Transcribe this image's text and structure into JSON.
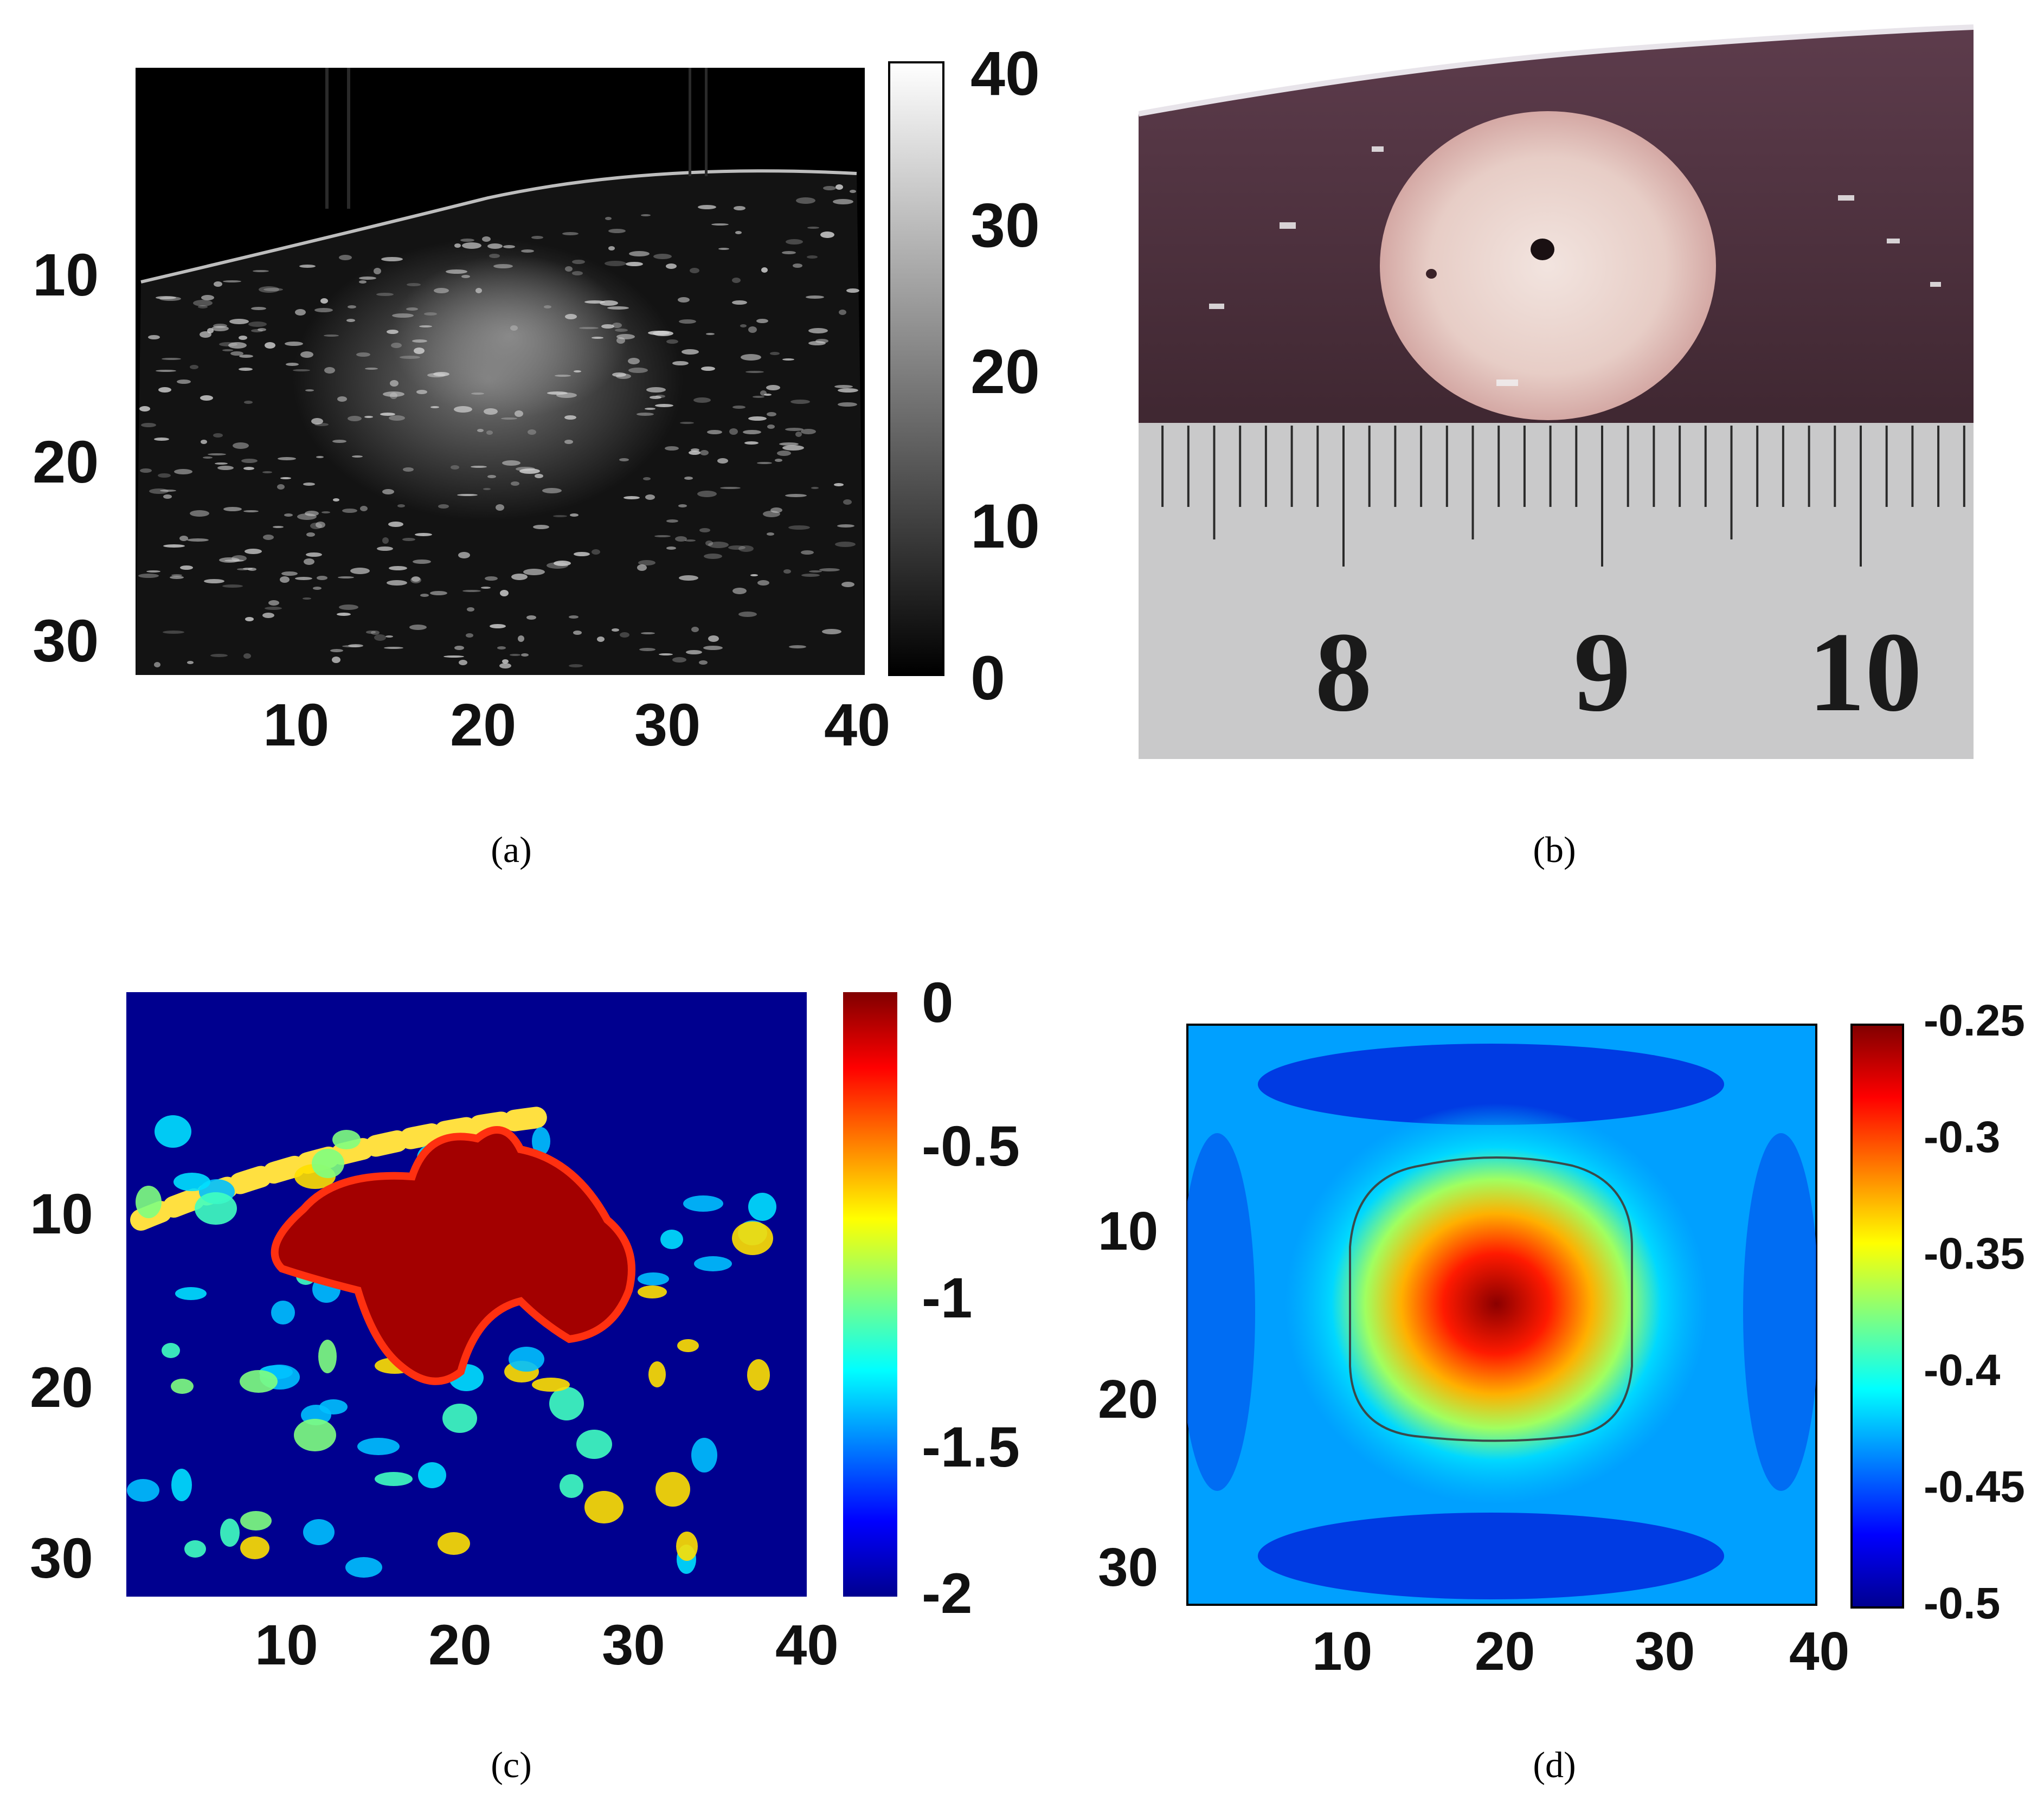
{
  "panels": {
    "a": {
      "caption": "(a)",
      "chart_data": {
        "type": "heatmap",
        "colormap": "gray",
        "xticks": [
          "10",
          "20",
          "30",
          "40"
        ],
        "yticks": [
          "10",
          "20",
          "30"
        ],
        "xlim": [
          0,
          40
        ],
        "ylim": [
          33,
          0
        ],
        "colorbar": {
          "ticks": [
            "0",
            "10",
            "20",
            "30",
            "40"
          ],
          "range": [
            0,
            40
          ]
        }
      }
    },
    "b": {
      "caption": "(b)",
      "ruler_numbers": [
        "8",
        "9",
        "10"
      ]
    },
    "c": {
      "caption": "(c)",
      "chart_data": {
        "type": "heatmap",
        "colormap": "jet",
        "xticks": [
          "10",
          "20",
          "30",
          "40"
        ],
        "yticks": [
          "10",
          "20",
          "30"
        ],
        "xlim": [
          0,
          40
        ],
        "ylim": [
          33,
          0
        ],
        "colorbar": {
          "ticks": [
            "0",
            "-0.5",
            "-1",
            "-1.5",
            "-2"
          ],
          "range": [
            -2,
            0
          ]
        }
      }
    },
    "d": {
      "caption": "(d)",
      "chart_data": {
        "type": "heatmap",
        "colormap": "jet",
        "xticks": [
          "10",
          "20",
          "30",
          "40"
        ],
        "yticks": [
          "10",
          "20",
          "30"
        ],
        "xlim": [
          0,
          40
        ],
        "ylim": [
          33,
          0
        ],
        "colorbar": {
          "ticks": [
            "-0.25",
            "-0.3",
            "-0.35",
            "-0.4",
            "-0.45",
            "-0.5"
          ],
          "range": [
            -0.5,
            -0.25
          ]
        }
      }
    }
  }
}
